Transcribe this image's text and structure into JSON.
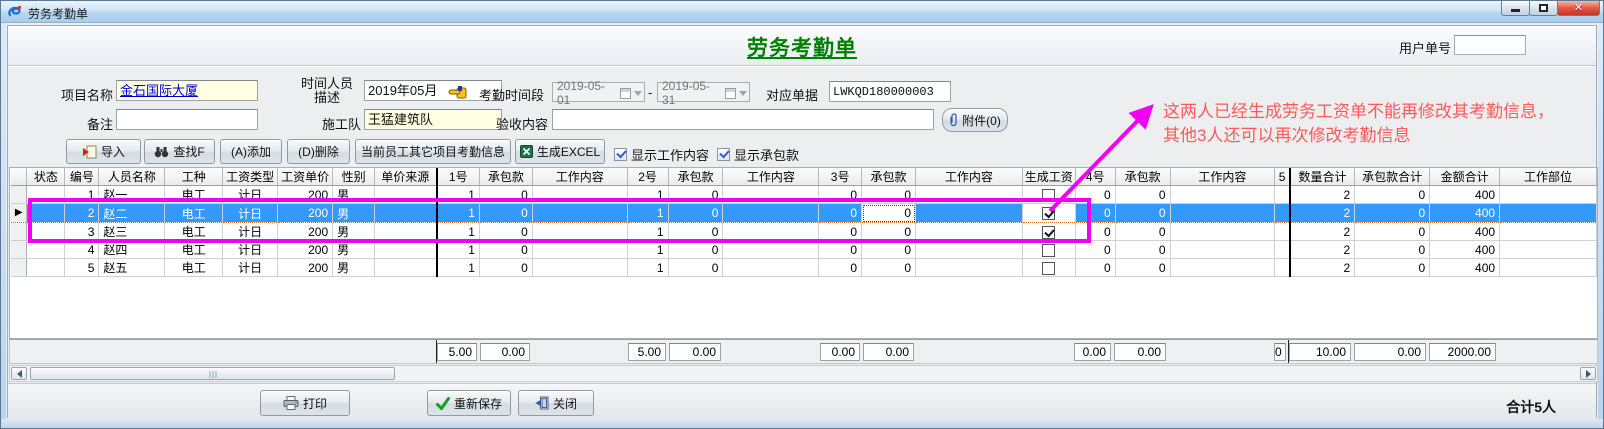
{
  "window": {
    "title": "劳务考勤单"
  },
  "header": {
    "title": "劳务考勤单",
    "user_no_label": "用户单号",
    "user_no_value": ""
  },
  "form": {
    "project_label": "项目名称",
    "project_value": "金石国际大厦",
    "period_desc_label_line1": "时间人员",
    "period_desc_label_line2": "描述",
    "period_desc_value": "2019年05月",
    "attendance_period_label": "考勤时间段",
    "date_from": "2019-05-01",
    "date_separator": "-",
    "date_to": "2019-05-31",
    "doc_label": "对应单据",
    "doc_value": "LWKQD180000003",
    "note_label": "备注",
    "note_value": "",
    "crew_label": "施工队",
    "crew_value": "王猛建筑队",
    "accept_label": "验收内容",
    "accept_value": "",
    "attach_label": "附件(0)"
  },
  "toolbar": {
    "import_label": "导入",
    "find_label": "查找F",
    "add_label": "(A)添加",
    "delete_label": "(D)删除",
    "other_projects_label": "当前员工其它项目考勤信息",
    "excel_label": "生成EXCEL",
    "show_work_label": "显示工作内容",
    "show_work_checked": true,
    "show_contract_label": "显示承包款",
    "show_contract_checked": true
  },
  "grid": {
    "columns": [
      {
        "key": "selector",
        "label": ""
      },
      {
        "key": "status",
        "label": "状态"
      },
      {
        "key": "no",
        "label": "编号"
      },
      {
        "key": "name",
        "label": "人员名称"
      },
      {
        "key": "trade",
        "label": "工种"
      },
      {
        "key": "wage_type",
        "label": "工资类型"
      },
      {
        "key": "unit_price",
        "label": "工资单价"
      },
      {
        "key": "gender",
        "label": "性别"
      },
      {
        "key": "price_source",
        "label": "单价来源"
      },
      {
        "key": "day1",
        "label": "1号"
      },
      {
        "key": "contract1",
        "label": "承包款"
      },
      {
        "key": "work1",
        "label": "工作内容"
      },
      {
        "key": "day2",
        "label": "2号"
      },
      {
        "key": "contract2",
        "label": "承包款"
      },
      {
        "key": "work2",
        "label": "工作内容"
      },
      {
        "key": "day3",
        "label": "3号"
      },
      {
        "key": "contract3",
        "label": "承包款"
      },
      {
        "key": "work3",
        "label": "工作内容"
      },
      {
        "key": "gen_wage",
        "label": "生成工资"
      },
      {
        "key": "day4",
        "label": "4号"
      },
      {
        "key": "contract4",
        "label": "承包款"
      },
      {
        "key": "work4",
        "label": "工作内容"
      },
      {
        "key": "day5",
        "label": "5"
      },
      {
        "key": "qty_total",
        "label": "数量合计"
      },
      {
        "key": "contract_total",
        "label": "承包款合计"
      },
      {
        "key": "amount_total",
        "label": "金额合计"
      },
      {
        "key": "work_part",
        "label": "工作部位"
      }
    ],
    "rows": [
      {
        "status": "",
        "no": "1",
        "name": "赵一",
        "trade": "电工",
        "wage_type": "计日",
        "unit_price": "200",
        "gender": "男",
        "price_source": "",
        "day1": "1",
        "contract1": "0",
        "work1": "",
        "day2": "1",
        "contract2": "0",
        "work2": "",
        "day3": "0",
        "contract3": "0",
        "work3": "",
        "gen_wage": false,
        "day4": "0",
        "contract4": "0",
        "work4": "",
        "day5": "",
        "qty_total": "2",
        "contract_total": "0",
        "amount_total": "400",
        "work_part": "",
        "selected": false
      },
      {
        "status": "",
        "no": "2",
        "name": "赵二",
        "trade": "电工",
        "wage_type": "计日",
        "unit_price": "200",
        "gender": "男",
        "price_source": "",
        "day1": "1",
        "contract1": "0",
        "work1": "",
        "day2": "1",
        "contract2": "0",
        "work2": "",
        "day3": "0",
        "contract3": "0",
        "work3": "",
        "gen_wage": true,
        "day4": "0",
        "contract4": "0",
        "work4": "",
        "day5": "",
        "qty_total": "2",
        "contract_total": "0",
        "amount_total": "400",
        "work_part": "",
        "selected": true
      },
      {
        "status": "",
        "no": "3",
        "name": "赵三",
        "trade": "电工",
        "wage_type": "计日",
        "unit_price": "200",
        "gender": "男",
        "price_source": "",
        "day1": "1",
        "contract1": "0",
        "work1": "",
        "day2": "1",
        "contract2": "0",
        "work2": "",
        "day3": "0",
        "contract3": "0",
        "work3": "",
        "gen_wage": true,
        "day4": "0",
        "contract4": "0",
        "work4": "",
        "day5": "",
        "qty_total": "2",
        "contract_total": "0",
        "amount_total": "400",
        "work_part": "",
        "selected": false
      },
      {
        "status": "",
        "no": "4",
        "name": "赵四",
        "trade": "电工",
        "wage_type": "计日",
        "unit_price": "200",
        "gender": "男",
        "price_source": "",
        "day1": "1",
        "contract1": "0",
        "work1": "",
        "day2": "1",
        "contract2": "0",
        "work2": "",
        "day3": "0",
        "contract3": "0",
        "work3": "",
        "gen_wage": false,
        "day4": "0",
        "contract4": "0",
        "work4": "",
        "day5": "",
        "qty_total": "2",
        "contract_total": "0",
        "amount_total": "400",
        "work_part": "",
        "selected": false
      },
      {
        "status": "",
        "no": "5",
        "name": "赵五",
        "trade": "电工",
        "wage_type": "计日",
        "unit_price": "200",
        "gender": "男",
        "price_source": "",
        "day1": "1",
        "contract1": "0",
        "work1": "",
        "day2": "1",
        "contract2": "0",
        "work2": "",
        "day3": "0",
        "contract3": "0",
        "work3": "",
        "gen_wage": false,
        "day4": "0",
        "contract4": "0",
        "work4": "",
        "day5": "",
        "qty_total": "2",
        "contract_total": "0",
        "amount_total": "400",
        "work_part": "",
        "selected": false
      }
    ]
  },
  "summary": {
    "totals": {
      "day1": "5.00",
      "contract1": "0.00",
      "day2": "5.00",
      "contract2": "0.00",
      "day3": "0.00",
      "contract3": "0.00",
      "day4": "0.00",
      "contract4": "0.00",
      "day5": "0",
      "qty_total": "10.00",
      "contract_total": "0.00",
      "amount_total": "2000.00"
    }
  },
  "annotation": {
    "line1": "这两人已经生成劳务工资单不能再修改其考勤信息，",
    "line2": "其他3人还可以再次修改考勤信息"
  },
  "footer": {
    "print_label": "打印",
    "resave_label": "重新保存",
    "close_label": "关闭",
    "total_label": "合计5人"
  },
  "colors": {
    "title_green": "#008000",
    "selection_blue": "#3399ff",
    "annotation_shapes": "#f000f0",
    "annotation_text": "#ff5a5a",
    "link_blue": "#0000dd",
    "field_yellow": "#ffffe1"
  }
}
